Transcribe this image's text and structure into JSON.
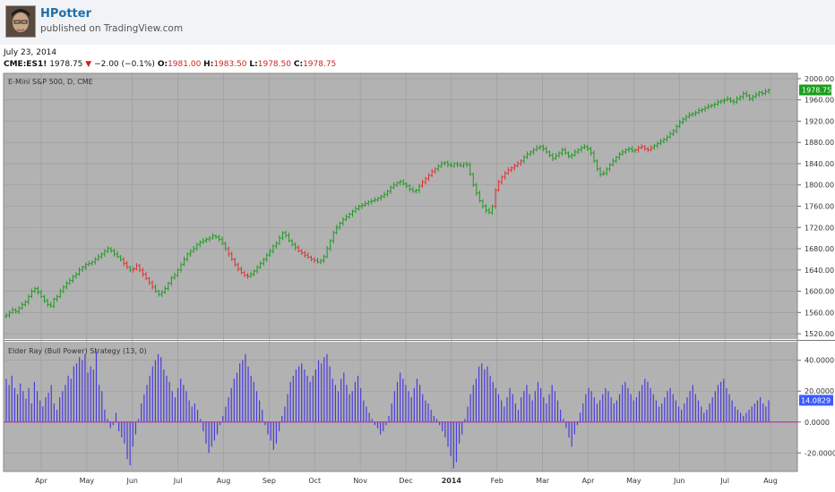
{
  "header": {
    "author": "HPotter",
    "published": "published on TradingView.com",
    "avatar_icon": "portrait-avatar-icon"
  },
  "info": {
    "date": "July 23, 2014",
    "symbol": "CME:ES1!",
    "last": "1978.75",
    "change": "−2.00 (−0.1%)",
    "open_label": "O:",
    "open": "1981.00",
    "high_label": "H:",
    "high": "1983.50",
    "low_label": "L:",
    "low": "1978.50",
    "close_label": "C:",
    "close": "1978.75",
    "down_icon": "triangle-down-icon"
  },
  "colors": {
    "plot_bg": "#b2b2b2",
    "grid": "#9a9a9a",
    "up": "#1f9a1f",
    "down": "#e03030",
    "bull_bar": "#4a3ddb",
    "zero_line": "#b03aa8",
    "price_badge": "#1b9e1b",
    "indicator_badge": "#3b5bff"
  },
  "chart_data": [
    {
      "type": "ohlc",
      "title": "E-Mini S&P 500, D, CME",
      "ylim": [
        1510,
        2010
      ],
      "y_ticks": [
        "1520.00",
        "1560.00",
        "1600.00",
        "1640.00",
        "1680.00",
        "1720.00",
        "1760.00",
        "1800.00",
        "1840.00",
        "1880.00",
        "1920.00",
        "1960.00",
        "2000.00"
      ],
      "last_value_label": "1978.75",
      "x_labels": [
        "Apr",
        "May",
        "Jun",
        "Jul",
        "Aug",
        "Sep",
        "Oct",
        "Nov",
        "Dec",
        "2014",
        "Feb",
        "Mar",
        "Apr",
        "May",
        "Jun",
        "Jul",
        "Aug"
      ],
      "grid": true,
      "series": [
        {
          "closes": [
            1555,
            1560,
            1565,
            1562,
            1568,
            1575,
            1580,
            1590,
            1600,
            1605,
            1598,
            1590,
            1582,
            1575,
            1572,
            1585,
            1590,
            1600,
            1608,
            1615,
            1620,
            1628,
            1632,
            1640,
            1645,
            1650,
            1652,
            1655,
            1660,
            1665,
            1670,
            1675,
            1680,
            1676,
            1670,
            1665,
            1660,
            1652,
            1645,
            1640,
            1642,
            1648,
            1640,
            1632,
            1624,
            1616,
            1608,
            1600,
            1594,
            1598,
            1605,
            1615,
            1625,
            1630,
            1640,
            1650,
            1660,
            1670,
            1675,
            1680,
            1688,
            1692,
            1695,
            1698,
            1700,
            1704,
            1702,
            1698,
            1690,
            1680,
            1670,
            1660,
            1650,
            1642,
            1635,
            1630,
            1628,
            1632,
            1638,
            1645,
            1652,
            1660,
            1668,
            1675,
            1685,
            1690,
            1700,
            1710,
            1705,
            1695,
            1688,
            1682,
            1676,
            1672,
            1668,
            1664,
            1660,
            1658,
            1655,
            1658,
            1665,
            1680,
            1695,
            1710,
            1720,
            1728,
            1735,
            1740,
            1745,
            1750,
            1755,
            1760,
            1762,
            1765,
            1768,
            1770,
            1772,
            1775,
            1778,
            1782,
            1788,
            1795,
            1800,
            1804,
            1806,
            1802,
            1798,
            1792,
            1788,
            1790,
            1798,
            1805,
            1812,
            1818,
            1825,
            1830,
            1835,
            1840,
            1842,
            1838,
            1836,
            1840,
            1838,
            1836,
            1840,
            1838,
            1820,
            1800,
            1785,
            1770,
            1760,
            1752,
            1748,
            1760,
            1790,
            1805,
            1815,
            1822,
            1828,
            1832,
            1836,
            1840,
            1845,
            1852,
            1858,
            1862,
            1866,
            1870,
            1872,
            1868,
            1862,
            1856,
            1850,
            1855,
            1860,
            1866,
            1860,
            1854,
            1856,
            1862,
            1866,
            1870,
            1872,
            1868,
            1860,
            1845,
            1830,
            1820,
            1822,
            1830,
            1838,
            1845,
            1852,
            1858,
            1862,
            1866,
            1868,
            1864,
            1866,
            1870,
            1872,
            1868,
            1866,
            1870,
            1874,
            1878,
            1882,
            1886,
            1890,
            1896,
            1902,
            1910,
            1918,
            1924,
            1928,
            1932,
            1934,
            1936,
            1940,
            1942,
            1945,
            1948,
            1950,
            1952,
            1956,
            1958,
            1960,
            1962,
            1958,
            1956,
            1962,
            1966,
            1972,
            1968,
            1962,
            1966,
            1970,
            1974,
            1972,
            1976,
            1978.75
          ]
        }
      ]
    },
    {
      "type": "bar",
      "title": "Elder Ray (Bull Power) Strategy (13, 0)",
      "ylim": [
        -32,
        52
      ],
      "y_ticks": [
        "40.0000",
        "20.0000",
        "0.0000",
        "-20.0000"
      ],
      "last_value_label": "14.0829",
      "series": [
        {
          "values": [
            28,
            24,
            30,
            22,
            18,
            25,
            20,
            15,
            22,
            12,
            26,
            20,
            14,
            10,
            16,
            19,
            24,
            12,
            8,
            16,
            20,
            24,
            30,
            28,
            36,
            38,
            42,
            40,
            44,
            32,
            36,
            34,
            46,
            24,
            20,
            8,
            2,
            -4,
            -2,
            6,
            -6,
            -10,
            -14,
            -24,
            -28,
            -16,
            -8,
            2,
            12,
            18,
            24,
            30,
            36,
            40,
            44,
            42,
            34,
            30,
            26,
            20,
            16,
            22,
            28,
            24,
            20,
            14,
            10,
            12,
            8,
            2,
            -6,
            -14,
            -20,
            -16,
            -12,
            -8,
            -2,
            4,
            10,
            16,
            22,
            28,
            32,
            38,
            40,
            44,
            36,
            30,
            26,
            20,
            14,
            8,
            -2,
            -8,
            -12,
            -18,
            -14,
            -6,
            4,
            10,
            18,
            26,
            30,
            34,
            36,
            38,
            34,
            30,
            26,
            30,
            34,
            40,
            38,
            42,
            44,
            36,
            28,
            24,
            20,
            28,
            32,
            24,
            18,
            20,
            26,
            30,
            22,
            14,
            10,
            6,
            2,
            -2,
            -4,
            -8,
            -6,
            -2,
            4,
            12,
            20,
            26,
            32,
            28,
            24,
            20,
            16,
            22,
            28,
            24,
            18,
            14,
            12,
            8,
            4,
            2,
            -2,
            -6,
            -10,
            -16,
            -22,
            -30,
            -26,
            -14,
            -8,
            2,
            10,
            18,
            24,
            28,
            36,
            38,
            34,
            36,
            30,
            26,
            22,
            18,
            14,
            10,
            16,
            22,
            18,
            12,
            8,
            16,
            20,
            24,
            18,
            14,
            20,
            26,
            22,
            16,
            12,
            18,
            24,
            20,
            14,
            8,
            2,
            -4,
            -10,
            -16,
            -8,
            -2,
            6,
            12,
            18,
            22,
            20,
            16,
            12,
            14,
            18,
            22,
            20,
            16,
            12,
            14,
            18,
            24,
            26,
            22,
            18,
            14,
            16,
            20,
            24,
            28,
            26,
            22,
            18,
            14,
            10,
            12,
            16,
            20,
            22,
            18,
            14,
            10,
            8,
            12,
            16,
            20,
            24,
            18,
            14,
            10,
            6,
            8,
            12,
            16,
            20,
            24,
            26,
            28,
            22,
            18,
            14,
            10,
            8,
            6,
            4,
            6,
            8,
            10,
            12,
            14,
            16,
            12,
            10,
            14.0829
          ]
        }
      ]
    }
  ]
}
